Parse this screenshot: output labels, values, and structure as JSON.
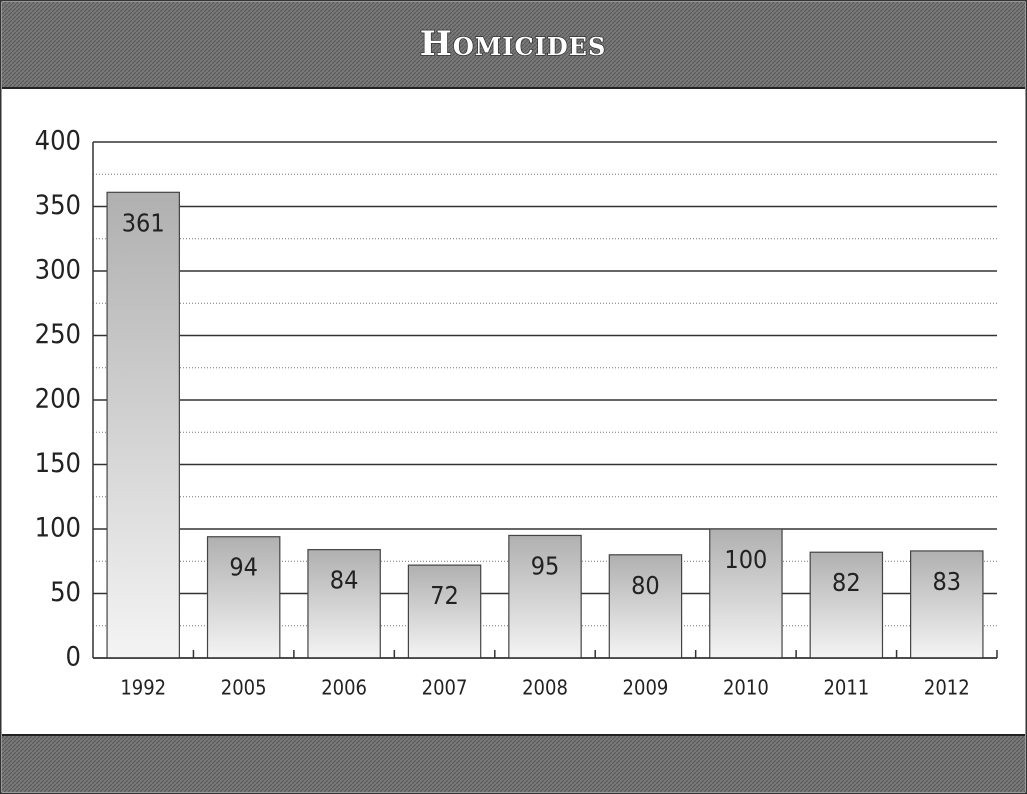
{
  "chart_data": {
    "type": "bar",
    "title": "Homicides",
    "categories": [
      "1992",
      "2005",
      "2006",
      "2007",
      "2008",
      "2009",
      "2010",
      "2011",
      "2012"
    ],
    "values": [
      361,
      94,
      84,
      72,
      95,
      80,
      100,
      82,
      83
    ],
    "color": "#b8b8b8",
    "ylim": [
      0,
      400
    ],
    "yticks": [
      0,
      50,
      100,
      150,
      200,
      250,
      300,
      350,
      400
    ],
    "minor_yticks": [
      25,
      75,
      125,
      175,
      225,
      275,
      325,
      375
    ],
    "grid": true
  }
}
